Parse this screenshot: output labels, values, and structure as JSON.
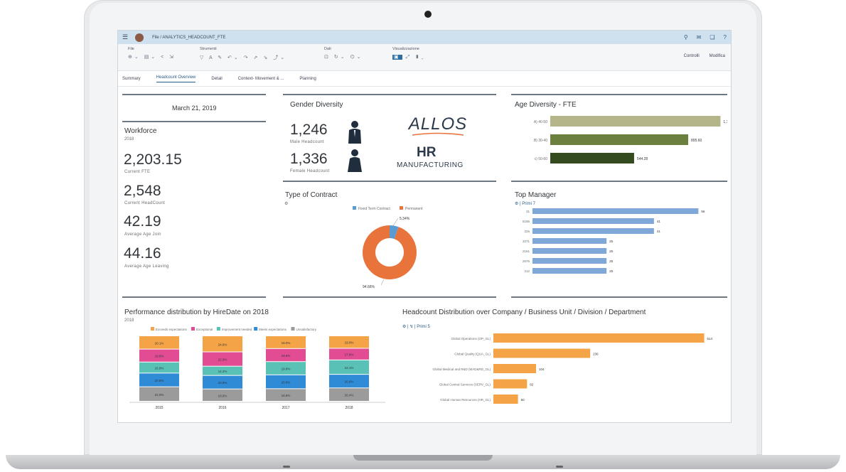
{
  "app": {
    "breadcrumb": "File  /  ANALYTICS_HEADCOUNT_FTE",
    "toolbar_groups": {
      "file": "File",
      "tools": "Strumenti",
      "data": "Dati",
      "display": "Visualizzazione"
    },
    "toolbar_right": {
      "controls": "Controlli",
      "edit": "Modifica"
    },
    "tabs": [
      "Summary",
      "Headcount Overview",
      "Detail",
      "Context- Movement & ...",
      "Planning"
    ],
    "selected_tab": "Headcount Overview",
    "accent": "#2b5c86"
  },
  "summary": {
    "date": "March 21, 2019",
    "workforce_title": "Workforce",
    "workforce_year": "2018",
    "kpis": [
      {
        "value": "2,203.15",
        "label": "Current FTE"
      },
      {
        "value": "2,548",
        "label": "Current HeadCount"
      },
      {
        "value": "42.19",
        "label": "Average Age Join"
      },
      {
        "value": "44.16",
        "label": "Average Age Leaving"
      }
    ]
  },
  "gender": {
    "title": "Gender Diversity",
    "male_value": "1,246",
    "male_label": "Male Headcount",
    "female_value": "1,336",
    "female_label": "Female Headcount",
    "logo_text": "ALLOS",
    "logo_sub1": "HR",
    "logo_sub2": "MANUFACTURING"
  },
  "age": {
    "title": "Age Diversity - FTE",
    "chart_data": {
      "type": "bar",
      "orientation": "horizontal",
      "categories": [
        "A) 40-50",
        "B) 30-40",
        "c) 50-60"
      ],
      "values": [
        1105.05,
        895.6,
        544.28
      ],
      "labels": [
        "1,105.05",
        "895.60",
        "544.28"
      ],
      "colors": [
        "#b5b58a",
        "#6b7f3e",
        "#344a1f"
      ],
      "xlim": [
        0,
        1200
      ]
    }
  },
  "contract": {
    "title": "Type of Contract",
    "chart_data": {
      "type": "pie",
      "categories": [
        "Fixed Term Contract",
        "Permanent"
      ],
      "values": [
        5.34,
        94.66
      ],
      "labels": [
        "5.34%",
        "94.66%"
      ],
      "colors": [
        "#5a9bd4",
        "#e8743b"
      ]
    }
  },
  "manager": {
    "title": "Top Manager",
    "filter": "Primi 7",
    "chart_data": {
      "type": "bar",
      "orientation": "horizontal",
      "categories": [
        "31",
        "5156",
        "226",
        "3271",
        "2161",
        "2676",
        "212"
      ],
      "values": [
        56,
        41,
        41,
        25,
        25,
        25,
        25
      ],
      "color": "#7fa7d8",
      "xlim": [
        0,
        60
      ]
    }
  },
  "performance": {
    "title": "Performance distribution by HireDate on 2018",
    "subtitle": "2018",
    "chart_data": {
      "type": "bar",
      "stacked": true,
      "categories": [
        "2015",
        "2016",
        "2017",
        "2018"
      ],
      "series": [
        {
          "name": "Unsatisfactory",
          "color": "#9b9b9b",
          "values": [
            22.0,
            18.9,
            18.8,
            20.4
          ],
          "labels": [
            "22.0%",
            "18.9%",
            "18.8%",
            "20.4%"
          ]
        },
        {
          "name": "Meets expectations",
          "color": "#2f8bd6",
          "values": [
            20.8,
            20.8,
            20.8,
            20.8
          ],
          "labels": [
            "20.8%",
            "20.8%",
            "20.8%",
            "20.8%"
          ]
        },
        {
          "name": "Improvement needed",
          "color": "#59c1b6",
          "values": [
            16.8,
            14.2,
            19.8,
            22.1
          ],
          "labels": [
            "16.8%",
            "14.2%",
            "19.8%",
            "22.1%"
          ]
        },
        {
          "name": "Exceptional",
          "color": "#e14c93",
          "values": [
            19.6,
            22.0,
            19.6,
            17.8
          ],
          "labels": [
            "19.6%",
            "22.0%",
            "19.6%",
            "17.8%"
          ]
        },
        {
          "name": "Exceeds expectations",
          "color": "#f4a447",
          "values": [
            20.1,
            24.6,
            19.0,
            19.0
          ],
          "labels": [
            "20.1%",
            "24.6%",
            "19.0%",
            "19.0%"
          ]
        }
      ],
      "legend_order": [
        "Exceeds expectations",
        "Exceptional",
        "Improvement needed",
        "Meets expectations",
        "Unsatisfactory"
      ]
    }
  },
  "distribution": {
    "title": "Headcount Distribution over Company / Business Unit / Division / Department",
    "filter": "Primi 5",
    "chart_data": {
      "type": "bar",
      "orientation": "horizontal",
      "categories": [
        "Global Operations (OP_GL)",
        "Global Quality (QUA_GL)",
        "Global Medical and R&D (MAD&RD_GL)",
        "Global Central Services (SERV_GL)",
        "Global Human Resources (HR_GL)"
      ],
      "values": [
        514,
        236,
        104,
        82,
        60
      ],
      "color": "#f4a447",
      "xlim": [
        0,
        520
      ]
    }
  }
}
